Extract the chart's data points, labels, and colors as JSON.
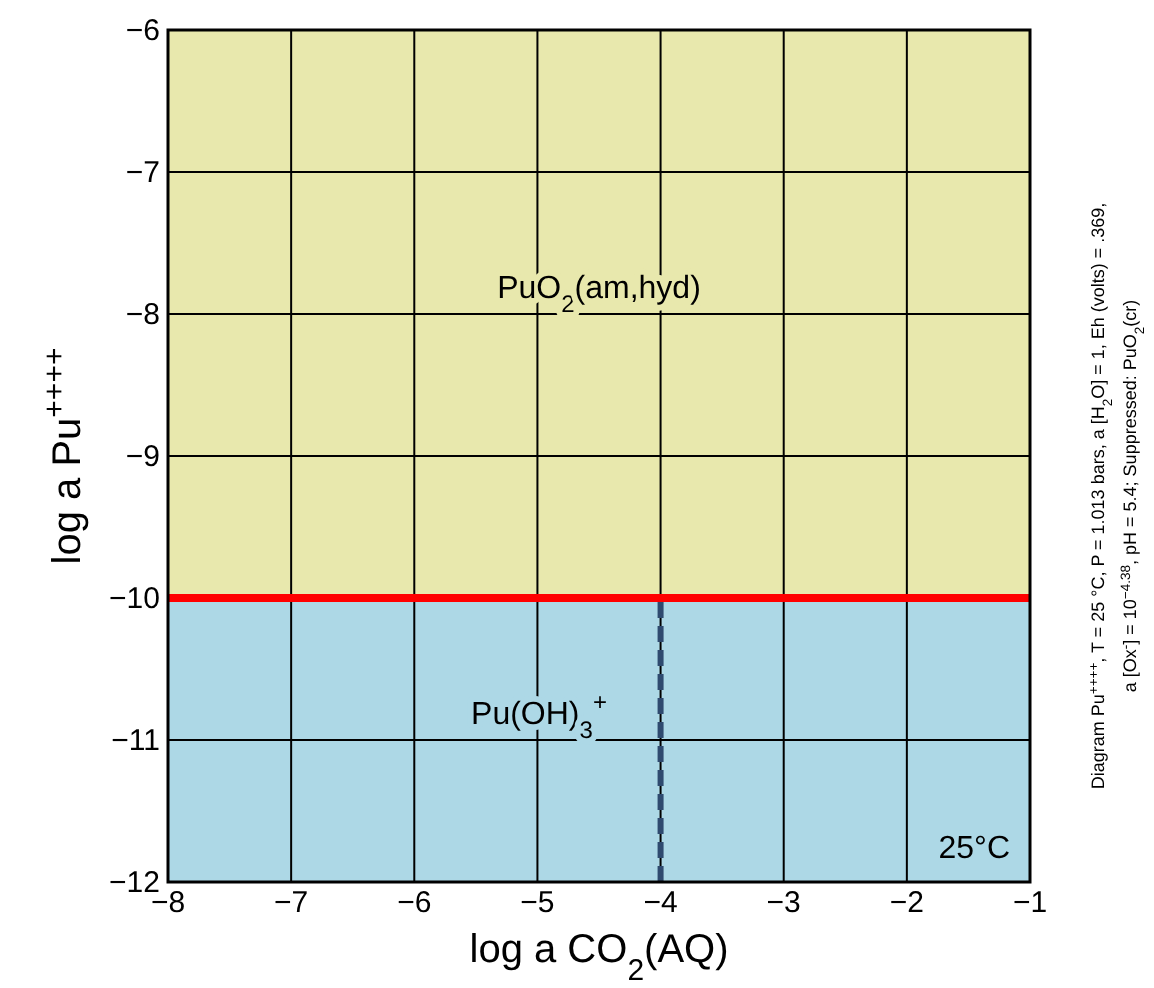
{
  "chart_data": {
    "type": "line",
    "xlabel": "log a CO$_{2}$(AQ)",
    "ylabel": "log a Pu$^{++++}$",
    "xlim": [
      -8,
      -1
    ],
    "ylim": [
      -12,
      -6
    ],
    "xticks": [
      {
        "value": -8,
        "label": "−8"
      },
      {
        "value": -7,
        "label": "−7"
      },
      {
        "value": -6,
        "label": "−6"
      },
      {
        "value": -5,
        "label": "−5"
      },
      {
        "value": -4,
        "label": "−4"
      },
      {
        "value": -3,
        "label": "−3"
      },
      {
        "value": -2,
        "label": "−2"
      },
      {
        "value": -1,
        "label": "−1"
      }
    ],
    "yticks": [
      {
        "value": -12,
        "label": "−12"
      },
      {
        "value": -11,
        "label": "−11"
      },
      {
        "value": -10,
        "label": "−10"
      },
      {
        "value": -9,
        "label": "−9"
      },
      {
        "value": -8,
        "label": "−8"
      },
      {
        "value": -7,
        "label": "−7"
      },
      {
        "value": -6,
        "label": "−6"
      }
    ],
    "grid": true,
    "line_style": "dashed",
    "bands": [
      {
        "axis": "y",
        "from": -10,
        "to": -6,
        "label": "PuO$_{2}$(am,hyd)",
        "color": "#e8e8ad"
      },
      {
        "axis": "y",
        "from": -12,
        "to": -10,
        "label": "Pu(OH)$_{3}$$^{+}$",
        "color": "#add8e6"
      }
    ],
    "ref_lines": [
      {
        "axis": "y",
        "value": -10,
        "color": "#ff0000"
      }
    ],
    "series": [
      {
        "color": "#2f4a6f",
        "x": [
          -4,
          -4
        ],
        "values": [
          -12,
          -10
        ]
      }
    ],
    "annotations": [
      "25°C",
      "Diagram Pu$^{++++}$, T = 25 °C, P = 1.013 bars, a [H$_{2}$O] = 1, Eh (volts) = .369,",
      "a [Ox$^{-}$] = 10$^{−4.38}$, pH = 5.4; Suppressed: PuO$_{2}$(cr)"
    ]
  }
}
